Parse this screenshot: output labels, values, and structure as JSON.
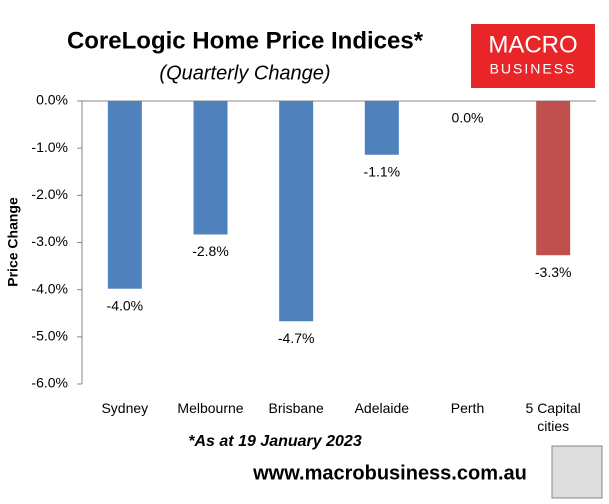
{
  "chart_data": {
    "type": "bar",
    "title": "CoreLogic Home Price Indices*",
    "subtitle": "(Quarterly Change)",
    "y_label": "Price Change",
    "categories": [
      "Sydney",
      "Melbourne",
      "Brisbane",
      "Adelaide",
      "Perth",
      "5 Capital cities"
    ],
    "values": [
      -3.98,
      -2.83,
      -4.67,
      -1.14,
      0,
      -3.27
    ],
    "value_labels": [
      "-4.0%",
      "-2.8%",
      "-4.7%",
      "-1.1%",
      "0.0%",
      "-3.3%"
    ],
    "colors": [
      "#4f81bd",
      "#4f81bd",
      "#4f81bd",
      "#4f81bd",
      "#4f81bd",
      "#c0504d"
    ],
    "ylim": [
      -6,
      0
    ],
    "yticks": [
      {
        "value": 0,
        "label": "0.0%"
      },
      {
        "value": -1,
        "label": "-1.0%"
      },
      {
        "value": -2,
        "label": "-2.0%"
      },
      {
        "value": -3,
        "label": "-3.0%"
      },
      {
        "value": -4,
        "label": "-4.0%"
      },
      {
        "value": -5,
        "label": "-5.0%"
      },
      {
        "value": -6,
        "label": "-6.0%"
      }
    ],
    "grid": false,
    "footnote": "*As at 19 January 2023",
    "source": "www.macrobusiness.com.au",
    "logo": {
      "line1": "MACRO",
      "line2": "BUSINESS"
    }
  }
}
